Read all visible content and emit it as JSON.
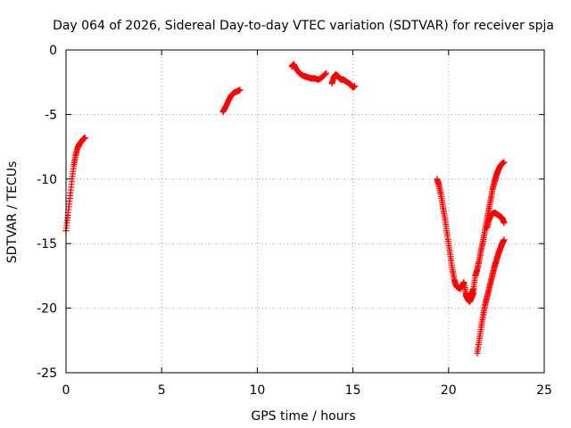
{
  "chart_data": {
    "type": "scatter",
    "title": "Day 064 of 2026, Sidereal Day-to-day VTEC variation (SDTVAR) for receiver spja",
    "xlabel": "GPS time / hours",
    "ylabel": "SDTVAR / TECUs",
    "xlim": [
      0,
      25
    ],
    "ylim": [
      -25,
      0
    ],
    "xticks": [
      0,
      5,
      10,
      15,
      20,
      25
    ],
    "yticks": [
      -25,
      -20,
      -15,
      -10,
      -5,
      0
    ],
    "xtick_labels": [
      "0",
      "5",
      "10",
      "15",
      "20",
      "25"
    ],
    "ytick_labels": [
      "-25",
      "-20",
      "-15",
      "-10",
      "-5",
      "0"
    ],
    "grid": true,
    "marker": "+",
    "color": "#ff0000",
    "series": [
      {
        "x": [
          0.0,
          0.1,
          0.2,
          0.3,
          0.4,
          0.5,
          0.6,
          0.7,
          0.8,
          0.9,
          1.0
        ],
        "values": [
          -14.0,
          -12.8,
          -11.5,
          -10.2,
          -9.0,
          -8.2,
          -7.6,
          -7.3,
          -7.1,
          -6.9,
          -6.8
        ]
      },
      {
        "x": [
          8.2,
          8.35,
          8.5,
          8.65,
          8.8,
          8.95,
          9.1
        ],
        "values": [
          -4.8,
          -4.4,
          -3.9,
          -3.5,
          -3.3,
          -3.2,
          -3.1
        ]
      },
      {
        "x": [
          11.8,
          11.9,
          12.0,
          12.2,
          12.4,
          12.6,
          12.8,
          13.0,
          13.2,
          13.4,
          13.6
        ],
        "values": [
          -1.3,
          -1.1,
          -1.4,
          -1.8,
          -2.0,
          -2.1,
          -2.2,
          -2.2,
          -2.3,
          -2.1,
          -1.8
        ]
      },
      {
        "x": [
          13.9,
          14.0,
          14.1,
          14.2,
          14.3,
          14.4,
          14.5,
          14.7,
          14.9,
          15.0,
          15.1
        ],
        "values": [
          -2.6,
          -2.1,
          -1.9,
          -2.0,
          -2.2,
          -2.3,
          -2.3,
          -2.5,
          -2.7,
          -2.9,
          -2.8
        ]
      },
      {
        "x": [
          19.4,
          19.5,
          19.6,
          19.7,
          19.8,
          19.9,
          20.0,
          20.1,
          20.2,
          20.3,
          20.4,
          20.5,
          20.6,
          20.7,
          20.8,
          20.9,
          21.0,
          21.1,
          21.2,
          21.3,
          21.4
        ],
        "values": [
          -10.0,
          -10.5,
          -11.2,
          -12.1,
          -13.0,
          -14.0,
          -15.0,
          -16.0,
          -17.0,
          -17.8,
          -18.3,
          -18.4,
          -18.5,
          -18.3,
          -18.0,
          -18.8,
          -19.2,
          -19.0,
          -18.9,
          -18.5,
          -17.5
        ]
      },
      {
        "x": [
          20.9,
          21.0,
          21.1,
          21.2,
          21.3
        ],
        "values": [
          -19.0,
          -19.3,
          -19.5,
          -19.2,
          -18.8
        ]
      },
      {
        "x": [
          21.4,
          21.5,
          21.6,
          21.7,
          21.8,
          21.9,
          22.0,
          22.1,
          22.2,
          22.3,
          22.4,
          22.5,
          22.6,
          22.7,
          22.8,
          22.9
        ],
        "values": [
          -17.5,
          -17.0,
          -16.3,
          -15.5,
          -14.8,
          -14.0,
          -13.2,
          -12.4,
          -11.6,
          -10.8,
          -10.2,
          -9.7,
          -9.3,
          -9.0,
          -8.8,
          -8.7
        ]
      },
      {
        "x": [
          22.0,
          22.1,
          22.2,
          22.3,
          22.4,
          22.5,
          22.6,
          22.7,
          22.8,
          22.9
        ],
        "values": [
          -13.8,
          -13.2,
          -12.8,
          -12.7,
          -12.6,
          -12.7,
          -12.8,
          -12.9,
          -13.0,
          -13.4
        ]
      },
      {
        "x": [
          21.5,
          21.6,
          21.7,
          21.8,
          21.9,
          22.0,
          22.1,
          22.2,
          22.3,
          22.4,
          22.5,
          22.6,
          22.7,
          22.8,
          22.9
        ],
        "values": [
          -23.5,
          -22.5,
          -21.5,
          -20.6,
          -19.8,
          -19.2,
          -18.6,
          -18.0,
          -17.4,
          -16.8,
          -16.3,
          -15.8,
          -15.4,
          -15.0,
          -14.7
        ]
      }
    ]
  }
}
